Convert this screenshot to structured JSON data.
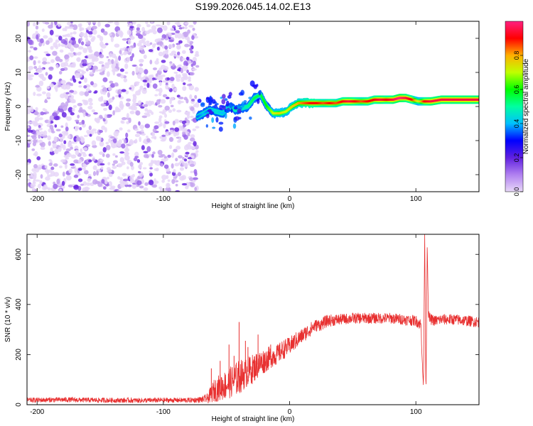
{
  "title": "S199.2026.045.14.02.E13",
  "chart_data": [
    {
      "type": "heatmap",
      "title": "S199.2026.045.14.02.E13",
      "xlabel": "Height of straight line (km)",
      "ylabel": "Frequency (Hz)",
      "xlim": [
        -208,
        150
      ],
      "ylim": [
        -25,
        25
      ],
      "xticks": [
        -200,
        -100,
        0,
        100
      ],
      "yticks": [
        -20,
        -10,
        0,
        10,
        20
      ],
      "colorbar": {
        "label": "Normalized spectral amplitude",
        "range": [
          0.0,
          1.0
        ],
        "ticks": [
          "0.0",
          "0.2",
          "0.4",
          "0.6",
          "0.8"
        ],
        "colors": [
          "#e8d8f8",
          "#b080f0",
          "#6020e0",
          "#0000ff",
          "#00c0ff",
          "#00ffa0",
          "#00ff00",
          "#c0ff00",
          "#ffb000",
          "#ff0000",
          "#ff2080"
        ]
      },
      "noise_region_x": [
        -208,
        -73
      ],
      "ridge": {
        "x": [
          -73,
          -68,
          -63,
          -58,
          -53,
          -48,
          -43,
          -38,
          -33,
          -28,
          -23,
          -18,
          -13,
          -8,
          -3,
          2,
          7,
          12,
          17,
          22,
          27,
          32,
          37,
          42,
          47,
          52,
          57,
          62,
          67,
          72,
          77,
          82,
          87,
          92,
          97,
          102,
          107,
          112,
          120,
          130,
          140,
          150
        ],
        "y": [
          -3,
          -2,
          -1,
          -1.5,
          -2,
          0,
          -1,
          -0.5,
          0,
          2.5,
          3.5,
          0,
          -2,
          -2,
          -1.5,
          0,
          1,
          1,
          1,
          1,
          1,
          1,
          1,
          1.5,
          1.5,
          1.5,
          1.5,
          1.5,
          2,
          2,
          2,
          2,
          2.5,
          2.5,
          2,
          1.5,
          1.5,
          1.5,
          2,
          2,
          2,
          2
        ],
        "amplitude": [
          0.35,
          0.4,
          0.35,
          0.45,
          0.4,
          0.45,
          0.5,
          0.45,
          0.5,
          0.55,
          0.55,
          0.6,
          0.7,
          0.75,
          0.7,
          0.75,
          0.8,
          0.85,
          0.9,
          0.9,
          0.85,
          0.9,
          0.85,
          0.9,
          0.95,
          0.9,
          0.85,
          0.9,
          0.9,
          0.95,
          0.9,
          0.95,
          1.0,
          0.95,
          0.9,
          0.7,
          0.9,
          0.95,
          0.95,
          0.95,
          0.95,
          0.95
        ]
      }
    },
    {
      "type": "line",
      "xlabel": "Height of straight line (km)",
      "ylabel": "SNR (10 * v/v)",
      "xlim": [
        -208,
        150
      ],
      "ylim": [
        0,
        680
      ],
      "xticks": [
        -200,
        -100,
        0,
        100
      ],
      "yticks": [
        0,
        200,
        400,
        600
      ],
      "series": [
        {
          "name": "SNR",
          "color": "#e83030",
          "x": [
            -208,
            -180,
            -150,
            -120,
            -100,
            -80,
            -70,
            -65,
            -60,
            -55,
            -50,
            -45,
            -40,
            -35,
            -30,
            -25,
            -20,
            -15,
            -10,
            -5,
            0,
            5,
            10,
            15,
            20,
            25,
            30,
            40,
            50,
            60,
            70,
            80,
            90,
            100,
            104,
            106,
            107,
            108,
            109,
            110,
            112,
            115,
            120,
            130,
            140,
            150
          ],
          "y": [
            18,
            20,
            18,
            17,
            18,
            18,
            20,
            25,
            55,
            70,
            80,
            95,
            110,
            125,
            140,
            160,
            175,
            190,
            200,
            220,
            235,
            255,
            275,
            295,
            315,
            320,
            335,
            340,
            345,
            345,
            345,
            345,
            340,
            335,
            320,
            60,
            680,
            40,
            640,
            350,
            340,
            335,
            340,
            340,
            335,
            330
          ],
          "noise": [
            10,
            10,
            10,
            10,
            10,
            10,
            12,
            20,
            45,
            55,
            60,
            65,
            70,
            60,
            60,
            55,
            50,
            45,
            40,
            40,
            35,
            35,
            30,
            30,
            25,
            25,
            25,
            22,
            22,
            22,
            22,
            22,
            22,
            22,
            25,
            10,
            0,
            10,
            0,
            25,
            22,
            22,
            22,
            22,
            22,
            22
          ],
          "spikes": [
            [
              -40,
              330
            ],
            [
              -35,
              255
            ],
            [
              -25,
              280
            ],
            [
              -33,
              230
            ],
            [
              -48,
              240
            ],
            [
              -55,
              175
            ],
            [
              -62,
              145
            ],
            [
              -20,
              190
            ],
            [
              -15,
              240
            ],
            [
              -10,
              220
            ],
            [
              -44,
              195
            ]
          ]
        }
      ]
    }
  ]
}
